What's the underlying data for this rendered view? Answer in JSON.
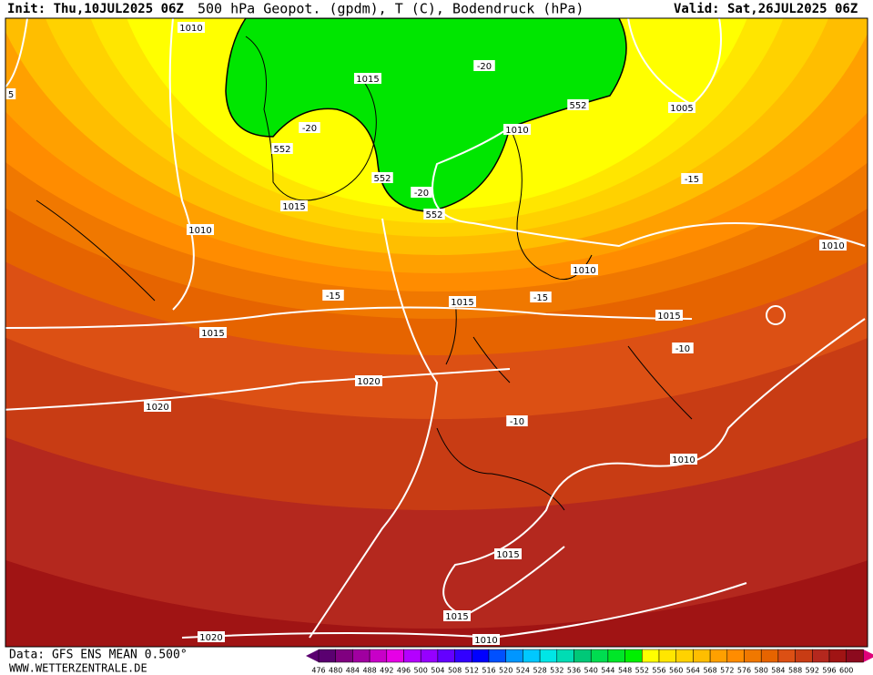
{
  "header": {
    "init": "Init: Thu,10JUL2025 06Z",
    "title": "500 hPa Geopot. (gpdm), T (C), Bodendruck (hPa)",
    "valid": "Valid: Sat,26JUL2025 06Z"
  },
  "map": {
    "labels": [
      "1010",
      "5",
      "1015",
      "-20",
      "552",
      "1005",
      "-20",
      "1010",
      "552",
      "552",
      "-20",
      "552",
      "-15",
      "1015",
      "1010",
      "1010",
      "1010",
      "-15",
      "1015",
      "-15",
      "1015",
      "1015",
      "-10",
      "1020",
      "1020",
      "-10",
      "1010",
      "1015",
      "1015",
      "1020",
      "1010"
    ]
  },
  "legend": {
    "ticks": [
      "476",
      "480",
      "484",
      "488",
      "492",
      "496",
      "500",
      "504",
      "508",
      "512",
      "516",
      "520",
      "524",
      "528",
      "532",
      "536",
      "540",
      "544",
      "548",
      "552",
      "556",
      "560",
      "564",
      "568",
      "572",
      "576",
      "580",
      "584",
      "588",
      "592",
      "596",
      "600"
    ],
    "colors": [
      "#5a0070",
      "#800080",
      "#a000a0",
      "#c800c8",
      "#e600e6",
      "#b400ff",
      "#9600ff",
      "#6400ff",
      "#3200ff",
      "#0000ff",
      "#0050ff",
      "#0096ff",
      "#00c8ff",
      "#00e6e6",
      "#00dcb4",
      "#00c878",
      "#00dc50",
      "#00e628",
      "#00f000",
      "#ffff00",
      "#ffe600",
      "#ffd200",
      "#ffbe00",
      "#ffa000",
      "#ff8c00",
      "#f07800",
      "#e66400",
      "#dc5014",
      "#c83c14",
      "#b4281e",
      "#a01414",
      "#8c0a1e"
    ]
  },
  "footer": {
    "source": "Data: GFS ENS MEAN 0.500°",
    "site": "WWW.WETTERZENTRALE.DE"
  }
}
